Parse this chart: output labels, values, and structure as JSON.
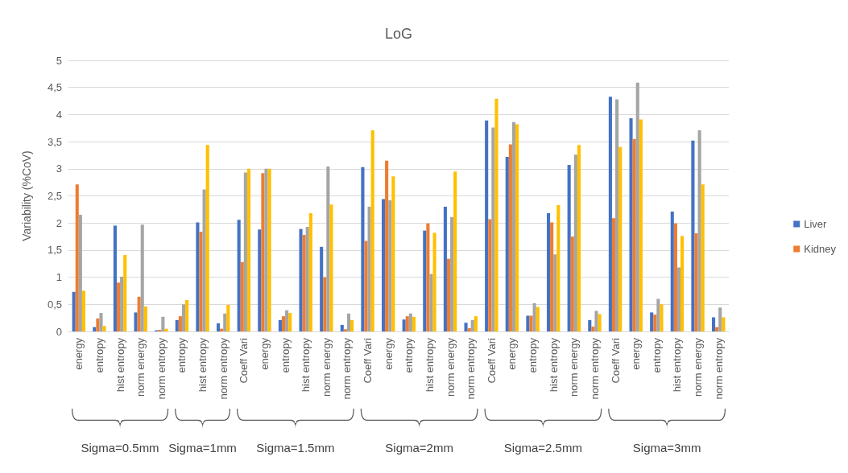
{
  "chart_data": {
    "type": "bar",
    "title": "LoG",
    "ylabel": "Variability (%CoV)",
    "categories": [
      "energy",
      "entropy",
      "hist entropy",
      "norm energy",
      "norm entropy",
      "entropy",
      "hist entropy",
      "norm entropy",
      "Coeff Vari",
      "energy",
      "entropy",
      "hist entropy",
      "norm energy",
      "norm entropy",
      "Coeff Vari",
      "energy",
      "entropy",
      "hist entropy",
      "norm energy",
      "norm entropy",
      "Coeff Vari",
      "energy",
      "entropy",
      "hist entropy",
      "norm energy",
      "norm entropy",
      "Coeff Vari",
      "energy",
      "entropy",
      "hist entropy",
      "norm energy",
      "norm entropy"
    ],
    "series": [
      {
        "name": "Liver",
        "color": "#4472c4",
        "values": [
          0.73,
          0.08,
          1.95,
          0.35,
          0.02,
          0.21,
          2.01,
          0.15,
          2.06,
          1.88,
          0.21,
          1.89,
          1.56,
          0.12,
          3.03,
          2.44,
          0.22,
          1.86,
          2.3,
          0.16,
          3.89,
          3.22,
          0.29,
          2.18,
          3.07,
          0.21,
          4.33,
          3.93,
          0.35,
          2.21,
          3.52,
          0.26
        ]
      },
      {
        "name": "Kidney",
        "color": "#ed7d31",
        "values": [
          2.71,
          0.24,
          0.9,
          0.64,
          0.03,
          0.28,
          1.84,
          0.05,
          1.28,
          2.92,
          0.28,
          1.78,
          1.0,
          0.04,
          1.67,
          3.15,
          0.28,
          1.99,
          1.34,
          0.06,
          2.07,
          3.45,
          0.29,
          2.01,
          1.75,
          0.09,
          2.09,
          3.55,
          0.31,
          1.99,
          1.81,
          0.08
        ]
      },
      {
        "color": "#a5a5a5",
        "values": [
          2.15,
          0.34,
          1.01,
          1.97,
          0.27,
          0.5,
          2.62,
          0.33,
          2.93,
          3.0,
          0.39,
          1.93,
          3.04,
          0.33,
          2.3,
          2.42,
          0.33,
          1.06,
          2.11,
          0.21,
          3.76,
          3.86,
          0.52,
          1.42,
          3.26,
          0.38,
          4.28,
          4.59,
          0.6,
          1.18,
          3.71,
          0.44
        ]
      },
      {
        "color": "#ffc000",
        "values": [
          0.75,
          0.1,
          1.41,
          0.46,
          0.05,
          0.58,
          3.44,
          0.49,
          3.0,
          3.0,
          0.34,
          2.18,
          2.34,
          0.21,
          3.71,
          2.86,
          0.27,
          1.82,
          2.95,
          0.28,
          4.29,
          3.82,
          0.45,
          2.33,
          3.44,
          0.32,
          3.4,
          3.91,
          0.5,
          1.76,
          2.71,
          0.26
        ]
      }
    ],
    "ylim": [
      0,
      5
    ],
    "yticks": [
      0,
      {
        "value": 0.5,
        "label": "0,5"
      },
      1,
      {
        "value": 1.5,
        "label": "1,5"
      },
      2,
      {
        "value": 2.5,
        "label": "2,5"
      },
      3,
      {
        "value": 3.5,
        "label": "3,5"
      },
      4,
      {
        "value": 4.5,
        "label": "4,5"
      },
      5
    ],
    "grid": "y",
    "legend": "right",
    "annotations": [
      "Sigma=0.5mm",
      "Sigma=1mm",
      "Sigma=1.5mm",
      "Sigma=2mm",
      "Sigma=2.5mm",
      "Sigma=3mm"
    ]
  }
}
